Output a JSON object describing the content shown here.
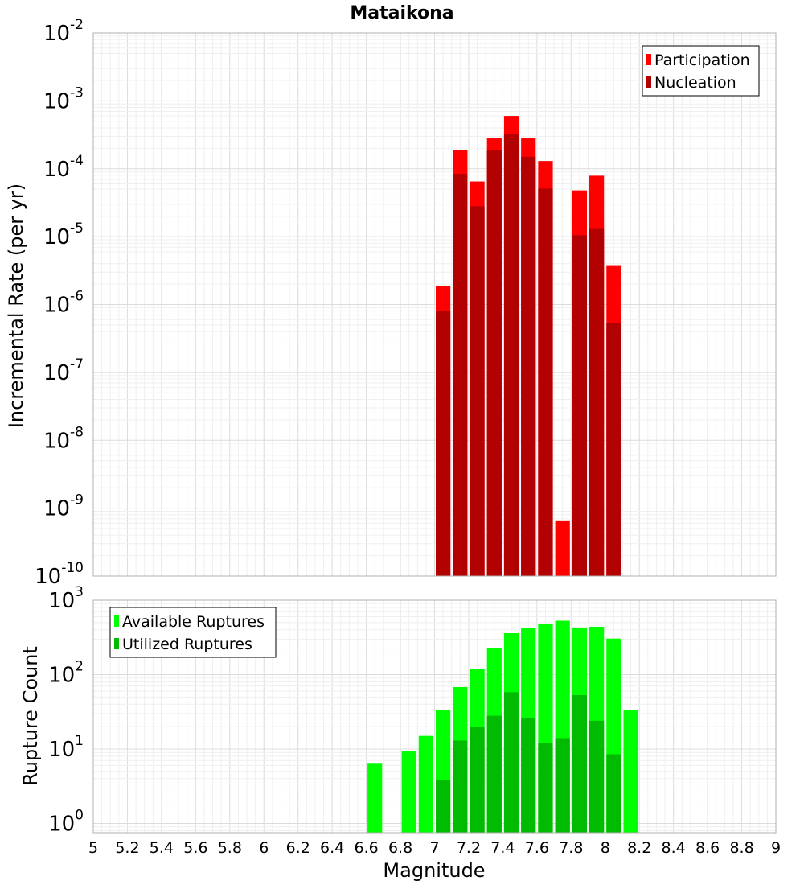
{
  "chart_data": [
    {
      "type": "bar",
      "title": "Mataikona",
      "xlabel": "",
      "ylabel": "Incremental Rate (per yr)",
      "xlim": [
        5,
        9
      ],
      "ylim": [
        1e-10,
        0.01
      ],
      "yscale": "log",
      "grid": true,
      "legend_position": "top-right",
      "bin_width": 0.1,
      "y_tick_base": "10",
      "y_tick_exponents": [
        "-10",
        "-9",
        "-8",
        "-7",
        "-6",
        "-5",
        "-4",
        "-3",
        "-2"
      ],
      "series": [
        {
          "name": "Participation",
          "color": "#ff0000",
          "x": [
            7.05,
            7.15,
            7.25,
            7.35,
            7.45,
            7.55,
            7.65,
            7.75,
            7.85,
            7.95,
            8.05
          ],
          "values": [
            1.9e-06,
            0.00019,
            6.5e-05,
            0.00028,
            0.0006,
            0.00028,
            0.00013,
            6.6e-10,
            4.8e-05,
            7.9e-05,
            3.8e-06
          ]
        },
        {
          "name": "Nucleation",
          "color": "#b30000",
          "x": [
            7.05,
            7.15,
            7.25,
            7.35,
            7.45,
            7.55,
            7.65,
            7.75,
            7.85,
            7.95,
            8.05
          ],
          "values": [
            8e-07,
            8.4e-05,
            2.8e-05,
            0.00019,
            0.00033,
            0.00015,
            5.1e-05,
            null,
            1.05e-05,
            1.3e-05,
            5.3e-07
          ]
        }
      ]
    },
    {
      "type": "bar",
      "title": "",
      "xlabel": "Magnitude",
      "ylabel": "Rupture Count",
      "xlim": [
        5,
        9
      ],
      "ylim": [
        0.75,
        1000
      ],
      "yscale": "log",
      "grid": true,
      "legend_position": "top-left",
      "bin_width": 0.1,
      "x_ticks": [
        "5",
        "5.2",
        "5.4",
        "5.6",
        "5.8",
        "6",
        "6.2",
        "6.4",
        "6.6",
        "6.8",
        "7",
        "7.2",
        "7.4",
        "7.6",
        "7.8",
        "8",
        "8.2",
        "8.4",
        "8.6",
        "8.8",
        "9"
      ],
      "y_tick_base": "10",
      "y_tick_exponents": [
        "0",
        "1",
        "2",
        "3"
      ],
      "series": [
        {
          "name": "Available Ruptures",
          "color": "#00ff00",
          "x": [
            6.65,
            6.85,
            6.95,
            7.05,
            7.15,
            7.25,
            7.35,
            7.45,
            7.55,
            7.65,
            7.75,
            7.85,
            7.95,
            8.05,
            8.15
          ],
          "values": [
            6.5,
            9.5,
            15,
            33,
            68,
            120,
            225,
            360,
            420,
            480,
            530,
            430,
            440,
            305,
            33
          ]
        },
        {
          "name": "Utilized Ruptures",
          "color": "#00bb00",
          "x": [
            7.05,
            7.15,
            7.25,
            7.35,
            7.45,
            7.55,
            7.65,
            7.75,
            7.85,
            7.95,
            8.05
          ],
          "values": [
            3.8,
            13,
            20,
            28,
            58,
            26,
            12,
            14,
            53,
            24,
            8.5
          ]
        }
      ]
    }
  ]
}
